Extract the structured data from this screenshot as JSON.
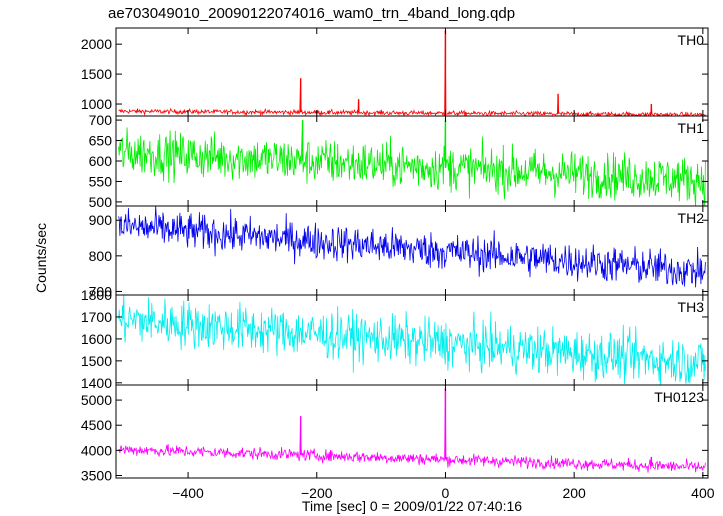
{
  "chart_data": {
    "type": "line",
    "title": "ae703049010_20090122074016_wam0_trn_4band_long.qdp",
    "xlabel": "Time [sec] 0 = 2009/01/22 07:40:16",
    "ylabel": "Counts/sec",
    "xlim": [
      -512,
      408
    ],
    "x_ticks": [
      -400,
      -200,
      0,
      200,
      400
    ],
    "x_tick_labels": [
      "−400",
      "−200",
      "0",
      "200",
      "400"
    ],
    "grid": false,
    "panels": [
      {
        "name": "TH0",
        "color": "#ff0000",
        "ylim": [
          800,
          2270
        ],
        "ticks": [
          1000,
          1500,
          2000
        ],
        "base_start": 880,
        "base_end": 820,
        "noise": 20,
        "spikes": [
          {
            "x": -225,
            "y": 1430
          },
          {
            "x": -135,
            "y": 1080
          },
          {
            "x": 0,
            "y": 2230
          },
          {
            "x": 175,
            "y": 1170
          },
          {
            "x": 320,
            "y": 1000
          }
        ]
      },
      {
        "name": "TH1",
        "color": "#00ee00",
        "ylim": [
          490,
          710
        ],
        "ticks": [
          500,
          550,
          600,
          650,
          700
        ],
        "base_start": 622,
        "base_end": 553,
        "noise": 28,
        "spikes": [
          {
            "x": -222,
            "y": 700
          },
          {
            "x": 0,
            "y": 700
          }
        ]
      },
      {
        "name": "TH2",
        "color": "#0000ee",
        "ylim": [
          690,
          940
        ],
        "ticks": [
          700,
          800,
          900
        ],
        "base_start": 885,
        "base_end": 755,
        "noise": 26,
        "spikes": []
      },
      {
        "name": "TH3",
        "color": "#00eeee",
        "ylim": [
          1390,
          1800
        ],
        "ticks": [
          1400,
          1500,
          1600,
          1700,
          1800
        ],
        "base_start": 1690,
        "base_end": 1490,
        "noise": 55,
        "spikes": []
      },
      {
        "name": "TH0123",
        "color": "#ff00ff",
        "ylim": [
          3450,
          5300
        ],
        "ticks": [
          3500,
          4000,
          4500,
          5000
        ],
        "base_start": 4020,
        "base_end": 3660,
        "noise": 60,
        "spikes": [
          {
            "x": -225,
            "y": 4680
          },
          {
            "x": 0,
            "y": 5230
          },
          {
            "x": 320,
            "y": 3870
          }
        ]
      }
    ]
  }
}
